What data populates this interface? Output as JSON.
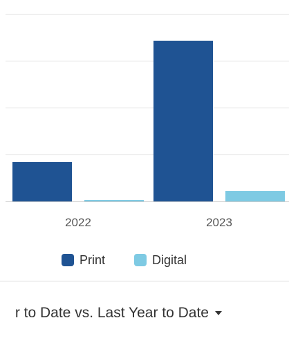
{
  "chart_data": {
    "type": "bar",
    "categories": [
      "2022",
      "2023"
    ],
    "series": [
      {
        "name": "Print",
        "color": "#1f5393",
        "values": [
          57,
          233
        ]
      },
      {
        "name": "Digital",
        "color": "#7ecae3",
        "values": [
          1,
          15
        ]
      }
    ],
    "ylim": [
      0,
      275
    ],
    "grid": true,
    "gridlines": [
      0,
      68,
      136,
      204,
      272
    ],
    "legend_position": "bottom",
    "title": "",
    "xlabel": "",
    "ylabel": ""
  },
  "footer": {
    "period_selector_label": "r to Date vs. Last Year to Date",
    "caret_icon": "caret-down-icon"
  }
}
